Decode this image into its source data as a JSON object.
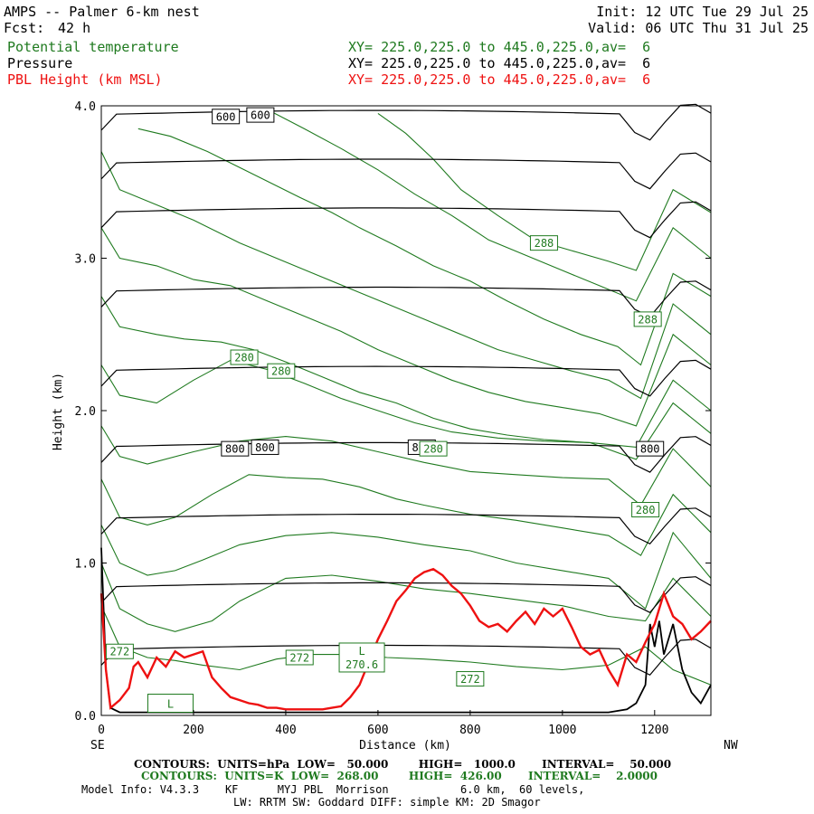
{
  "header": {
    "model_title": "AMPS -- Palmer 6-km nest",
    "fcst_label": "Fcst:",
    "fcst_value": "42 h",
    "init": "Init: 12 UTC Tue 29 Jul 25",
    "valid": "Valid: 06 UTC Thu 31 Jul 25"
  },
  "fields": [
    {
      "name": "Potential temperature",
      "xy": "XY= 225.0,225.0 to 445.0,225.0,av=  6",
      "color": "#1f7a1f"
    },
    {
      "name": "Pressure",
      "xy": "XY= 225.0,225.0 to 445.0,225.0,av=  6",
      "color": "#000000"
    },
    {
      "name": "PBL Height (km MSL)",
      "xy": "XY= 225.0,225.0 to 445.0,225.0,av=  6",
      "color": "#ee1111"
    }
  ],
  "footer": {
    "pressure_contours": "CONTOURS:  UNITS=hPa  LOW=   50.000        HIGH=   1000.0       INTERVAL=    50.000",
    "theta_contours": "CONTOURS:  UNITS=K  LOW=  268.00        HIGH=  426.00       INTERVAL=    2.0000",
    "model_info": "Model Info: V4.3.3    KF      MYJ PBL  Morrison           6.0 km,  60 levels,",
    "physics": "LW: RRTM SW: Goddard DIFF: simple KM: 2D Smagor"
  },
  "chart_data": {
    "type": "line",
    "xlabel": "Distance (km)",
    "ylabel": "Height (km)",
    "left_end_label": "SE",
    "right_end_label": "NW",
    "xlim": [
      0,
      1322
    ],
    "ylim": [
      0,
      4.0
    ],
    "x_ticks": [
      0,
      200,
      400,
      600,
      800,
      1000,
      1200
    ],
    "y_ticks": [
      0.0,
      1.0,
      2.0,
      3.0,
      4.0
    ],
    "y_tick_labels": [
      "0.0",
      "1.0",
      "2.0",
      "3.0",
      "4.0"
    ],
    "colors": {
      "pressure": "#000000",
      "theta": "#1f7a1f",
      "pbl": "#ee1111"
    },
    "pressure_isobars_km": [
      3.94,
      3.62,
      3.3,
      2.78,
      2.26,
      1.76,
      1.29,
      0.84,
      0.43
    ],
    "theta_isotherms": [
      {
        "x": [
          0,
          40,
          100,
          160,
          220,
          300,
          380,
          460,
          540,
          620,
          700,
          800,
          900,
          1000,
          1100,
          1180,
          1240,
          1322
        ],
        "y": [
          0.72,
          0.45,
          0.38,
          0.36,
          0.33,
          0.3,
          0.37,
          0.4,
          0.4,
          0.38,
          0.37,
          0.35,
          0.32,
          0.3,
          0.33,
          0.45,
          0.3,
          0.2
        ]
      },
      {
        "x": [
          0,
          40,
          100,
          160,
          240,
          300,
          400,
          500,
          600,
          700,
          800,
          900,
          1000,
          1100,
          1180,
          1240,
          1322
        ],
        "y": [
          1.0,
          0.7,
          0.6,
          0.55,
          0.62,
          0.75,
          0.9,
          0.92,
          0.88,
          0.83,
          0.8,
          0.76,
          0.72,
          0.65,
          0.62,
          0.9,
          0.65
        ]
      },
      {
        "x": [
          0,
          40,
          100,
          160,
          220,
          300,
          400,
          500,
          600,
          700,
          800,
          900,
          1000,
          1100,
          1180,
          1240,
          1322
        ],
        "y": [
          1.25,
          1.0,
          0.92,
          0.95,
          1.02,
          1.12,
          1.18,
          1.2,
          1.17,
          1.12,
          1.08,
          1.0,
          0.95,
          0.9,
          0.7,
          1.2,
          0.9
        ]
      },
      {
        "x": [
          0,
          40,
          100,
          160,
          240,
          320,
          400,
          480,
          560,
          640,
          700,
          800,
          900,
          1000,
          1100,
          1170,
          1240,
          1322
        ],
        "y": [
          1.55,
          1.3,
          1.25,
          1.3,
          1.45,
          1.58,
          1.56,
          1.55,
          1.5,
          1.42,
          1.38,
          1.32,
          1.28,
          1.23,
          1.18,
          1.05,
          1.45,
          1.2
        ]
      },
      {
        "x": [
          0,
          40,
          100,
          200,
          300,
          400,
          500,
          600,
          700,
          800,
          900,
          1000,
          1100,
          1170,
          1240,
          1322
        ],
        "y": [
          1.9,
          1.7,
          1.65,
          1.73,
          1.8,
          1.83,
          1.8,
          1.73,
          1.66,
          1.6,
          1.58,
          1.56,
          1.55,
          1.38,
          1.75,
          1.5
        ]
      },
      {
        "x": [
          0,
          40,
          120,
          200,
          280,
          360,
          440,
          520,
          600,
          680,
          760,
          860,
          960,
          1060,
          1160,
          1240,
          1322
        ],
        "y": [
          2.3,
          2.1,
          2.05,
          2.2,
          2.33,
          2.27,
          2.18,
          2.08,
          2.0,
          1.92,
          1.86,
          1.82,
          1.8,
          1.79,
          1.68,
          2.05,
          1.85
        ]
      },
      {
        "x": [
          0,
          40,
          120,
          180,
          260,
          330,
          400,
          480,
          560,
          640,
          720,
          800,
          880,
          960,
          1060,
          1160,
          1240,
          1322
        ],
        "y": [
          2.75,
          2.55,
          2.5,
          2.47,
          2.45,
          2.4,
          2.32,
          2.22,
          2.12,
          2.05,
          1.95,
          1.88,
          1.84,
          1.81,
          1.79,
          1.76,
          2.2,
          2.0
        ]
      },
      {
        "x": [
          0,
          40,
          120,
          200,
          280,
          360,
          440,
          520,
          600,
          680,
          760,
          840,
          920,
          1000,
          1080,
          1160,
          1240,
          1322
        ],
        "y": [
          3.2,
          3.0,
          2.95,
          2.86,
          2.82,
          2.72,
          2.62,
          2.52,
          2.4,
          2.3,
          2.2,
          2.12,
          2.06,
          2.02,
          1.98,
          1.9,
          2.5,
          2.3
        ]
      },
      {
        "x": [
          0,
          40,
          120,
          200,
          300,
          380,
          460,
          540,
          620,
          700,
          780,
          860,
          940,
          1020,
          1100,
          1170,
          1240,
          1322
        ],
        "y": [
          3.7,
          3.45,
          3.35,
          3.25,
          3.1,
          3.0,
          2.9,
          2.8,
          2.7,
          2.6,
          2.5,
          2.4,
          2.33,
          2.26,
          2.2,
          2.08,
          2.7,
          2.5
        ]
      },
      {
        "x": [
          80,
          150,
          230,
          330,
          430,
          500,
          560,
          640,
          720,
          800,
          880,
          960,
          1040,
          1120,
          1170,
          1240,
          1322
        ],
        "y": [
          3.85,
          3.8,
          3.7,
          3.55,
          3.4,
          3.3,
          3.2,
          3.08,
          2.95,
          2.85,
          2.72,
          2.6,
          2.5,
          2.42,
          2.3,
          2.9,
          2.75
        ]
      },
      {
        "x": [
          370,
          440,
          520,
          600,
          680,
          760,
          840,
          920,
          1000,
          1080,
          1160,
          1240,
          1322
        ],
        "y": [
          3.96,
          3.85,
          3.72,
          3.58,
          3.42,
          3.28,
          3.12,
          3.02,
          2.92,
          2.82,
          2.72,
          3.2,
          3.0
        ]
      },
      {
        "x": [
          600,
          660,
          720,
          780,
          860,
          940,
          1020,
          1100,
          1160,
          1240,
          1322
        ],
        "y": [
          3.95,
          3.82,
          3.65,
          3.45,
          3.28,
          3.12,
          3.05,
          2.98,
          2.92,
          3.45,
          3.3
        ]
      }
    ],
    "pbl_height": {
      "x": [
        0,
        10,
        20,
        40,
        60,
        70,
        80,
        100,
        120,
        140,
        160,
        180,
        200,
        220,
        240,
        260,
        280,
        300,
        320,
        340,
        360,
        380,
        400,
        420,
        440,
        460,
        480,
        500,
        520,
        540,
        560,
        580,
        600,
        620,
        640,
        660,
        680,
        700,
        720,
        740,
        760,
        780,
        800,
        820,
        840,
        860,
        880,
        900,
        920,
        940,
        960,
        980,
        1000,
        1020,
        1040,
        1060,
        1080,
        1100,
        1120,
        1140,
        1160,
        1180,
        1200,
        1220,
        1240,
        1260,
        1280,
        1300,
        1322
      ],
      "y": [
        0.8,
        0.3,
        0.05,
        0.1,
        0.18,
        0.32,
        0.35,
        0.25,
        0.38,
        0.32,
        0.42,
        0.38,
        0.4,
        0.42,
        0.25,
        0.18,
        0.12,
        0.1,
        0.08,
        0.07,
        0.05,
        0.05,
        0.04,
        0.04,
        0.04,
        0.04,
        0.04,
        0.05,
        0.06,
        0.12,
        0.2,
        0.35,
        0.5,
        0.62,
        0.75,
        0.82,
        0.9,
        0.94,
        0.96,
        0.92,
        0.85,
        0.8,
        0.72,
        0.62,
        0.58,
        0.6,
        0.55,
        0.62,
        0.68,
        0.6,
        0.7,
        0.65,
        0.7,
        0.58,
        0.45,
        0.4,
        0.43,
        0.3,
        0.2,
        0.4,
        0.35,
        0.48,
        0.6,
        0.8,
        0.65,
        0.6,
        0.5,
        0.55,
        0.62
      ]
    },
    "terrain_line": {
      "x": [
        0,
        10,
        20,
        40,
        100,
        200,
        400,
        600,
        800,
        1000,
        1100,
        1140,
        1160,
        1180,
        1190,
        1200,
        1210,
        1220,
        1240,
        1260,
        1280,
        1300,
        1322
      ],
      "y": [
        1.1,
        0.3,
        0.05,
        0.02,
        0.02,
        0.02,
        0.02,
        0.02,
        0.02,
        0.02,
        0.02,
        0.04,
        0.08,
        0.2,
        0.6,
        0.45,
        0.62,
        0.4,
        0.6,
        0.3,
        0.15,
        0.08,
        0.2
      ]
    },
    "contour_labels": [
      {
        "text": "600",
        "x": 270,
        "y": 3.93,
        "color": "#000000"
      },
      {
        "text": "600",
        "x": 345,
        "y": 3.94,
        "color": "#000000"
      },
      {
        "text": "800",
        "x": 290,
        "y": 1.75,
        "color": "#000000"
      },
      {
        "text": "800",
        "x": 355,
        "y": 1.76,
        "color": "#000000"
      },
      {
        "text": "800",
        "x": 695,
        "y": 1.76,
        "color": "#000000"
      },
      {
        "text": "800",
        "x": 1190,
        "y": 1.75,
        "color": "#000000"
      },
      {
        "text": "288",
        "x": 960,
        "y": 3.1,
        "color": "#1f7a1f"
      },
      {
        "text": "288",
        "x": 1185,
        "y": 2.6,
        "color": "#1f7a1f"
      },
      {
        "text": "280",
        "x": 310,
        "y": 2.35,
        "color": "#1f7a1f"
      },
      {
        "text": "280",
        "x": 390,
        "y": 2.26,
        "color": "#1f7a1f"
      },
      {
        "text": "280",
        "x": 720,
        "y": 1.75,
        "color": "#1f7a1f"
      },
      {
        "text": "280",
        "x": 1180,
        "y": 1.35,
        "color": "#1f7a1f"
      },
      {
        "text": "272",
        "x": 40,
        "y": 0.42,
        "color": "#1f7a1f"
      },
      {
        "text": "272",
        "x": 430,
        "y": 0.38,
        "color": "#1f7a1f"
      },
      {
        "text": "272",
        "x": 800,
        "y": 0.24,
        "color": "#1f7a1f"
      }
    ],
    "extremum_labels": [
      {
        "letter": "L",
        "value": "270.6",
        "x": 565,
        "y": 0.38,
        "color": "#1f7a1f"
      },
      {
        "letter": "L",
        "value": "",
        "x": 150,
        "y": 0.08,
        "color": "#1f7a1f"
      }
    ]
  }
}
